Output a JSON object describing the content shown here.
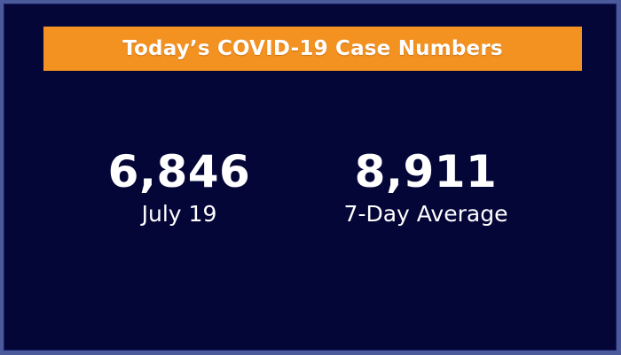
{
  "banner": {
    "title": "Today’s COVID-19 Case Numbers"
  },
  "stats": [
    {
      "value": "6,846",
      "label": "July 19"
    },
    {
      "value": "8,911",
      "label": "7-Day Average"
    }
  ],
  "colors": {
    "background": "#050638",
    "banner": "#f39220",
    "text": "#ffffff",
    "frame": "#4a5a9a"
  }
}
